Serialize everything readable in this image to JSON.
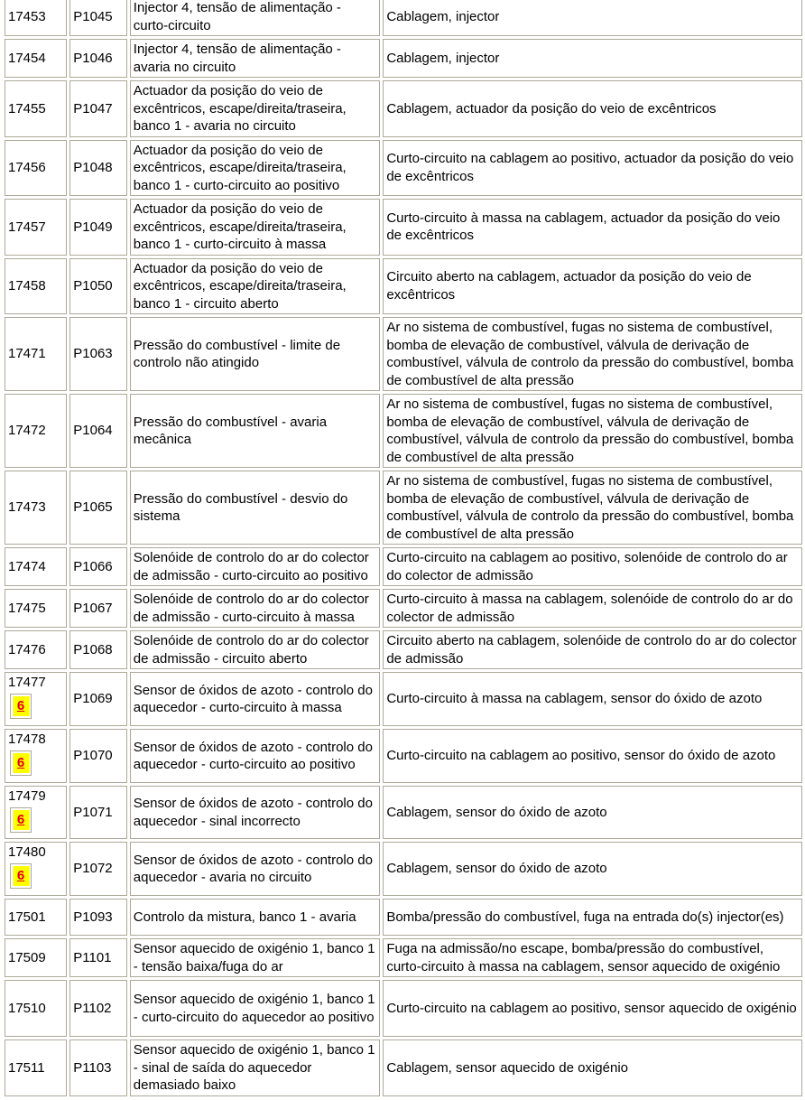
{
  "badge_color": "#ffff00",
  "rows": [
    {
      "code": "17453",
      "pcode": "P1045",
      "fault": "Injector 4, tensão de alimentação - curto-circuito",
      "cause": "Cablagem, injector"
    },
    {
      "code": "17454",
      "pcode": "P1046",
      "fault": "Injector 4, tensão de alimentação - avaria no circuito",
      "cause": "Cablagem, injector"
    },
    {
      "code": "17455",
      "pcode": "P1047",
      "fault": "Actuador da posição do veio de excêntricos, escape/direita/traseira, banco 1 - avaria no circuito",
      "cause": "Cablagem, actuador da posição do veio de excêntricos"
    },
    {
      "code": "17456",
      "pcode": "P1048",
      "fault": "Actuador da posição do veio de excêntricos, escape/direita/traseira, banco 1 - curto-circuito ao positivo",
      "cause": "Curto-circuito na cablagem ao positivo, actuador da posição do veio de excêntricos"
    },
    {
      "code": "17457",
      "pcode": "P1049",
      "fault": "Actuador da posição do veio de excêntricos, escape/direita/traseira, banco 1 - curto-circuito à massa",
      "cause": "Curto-circuito à massa na cablagem, actuador da posição do veio de excêntricos"
    },
    {
      "code": "17458",
      "pcode": "P1050",
      "fault": "Actuador da posição do veio de excêntricos, escape/direita/traseira, banco 1 - circuito aberto",
      "cause": "Circuito aberto na cablagem, actuador da posição do veio de excêntricos"
    },
    {
      "code": "17471",
      "pcode": "P1063",
      "fault": "Pressão do combustível - limite de controlo não atingido",
      "cause": "Ar no sistema de combustível, fugas no sistema de combustível, bomba de elevação de combustível, válvula de derivação de combustível, válvula de controlo da pressão do combustível, bomba de combustível de alta pressão"
    },
    {
      "code": "17472",
      "pcode": "P1064",
      "fault": "Pressão do combustível - avaria mecânica",
      "cause": "Ar no sistema de combustível, fugas no sistema de combustível, bomba de elevação de combustível, válvula de derivação de combustível, válvula de controlo da pressão do combustível, bomba de combustível de alta pressão"
    },
    {
      "code": "17473",
      "pcode": "P1065",
      "fault": "Pressão do combustível - desvio do sistema",
      "cause": "Ar no sistema de combustível, fugas no sistema de combustível, bomba de elevação de combustível, válvula de derivação de combustível, válvula de controlo da pressão do combustível, bomba de combustível de alta pressão"
    },
    {
      "code": "17474",
      "pcode": "P1066",
      "fault": "Solenóide de controlo do ar do colector de admissão - curto-circuito ao positivo",
      "cause": "Curto-circuito na cablagem ao positivo, solenóide de controlo do ar do colector de admissão"
    },
    {
      "code": "17475",
      "pcode": "P1067",
      "fault": "Solenóide de controlo do ar do colector de admissão - curto-circuito à massa",
      "cause": "Curto-circuito à massa na cablagem, solenóide de controlo do ar do colector de admissão"
    },
    {
      "code": "17476",
      "pcode": "P1068",
      "fault": "Solenóide de controlo do ar do colector de admissão - circuito aberto",
      "cause": "Circuito aberto na cablagem, solenóide de controlo do ar do colector de admissão"
    },
    {
      "code": "17477",
      "badge": "6",
      "pcode": "P1069",
      "fault": "Sensor de óxidos de azoto - controlo do aquecedor - curto-circuito à massa",
      "cause": "Curto-circuito à massa na cablagem, sensor do óxido de azoto"
    },
    {
      "code": "17478",
      "badge": "6",
      "pcode": "P1070",
      "fault": "Sensor de óxidos de azoto - controlo do aquecedor - curto-circuito ao positivo",
      "cause": "Curto-circuito na cablagem ao positivo, sensor do óxido de azoto"
    },
    {
      "code": "17479",
      "badge": "6",
      "pcode": "P1071",
      "fault": "Sensor de óxidos de azoto - controlo do aquecedor - sinal incorrecto",
      "cause": "Cablagem, sensor do óxido de azoto"
    },
    {
      "code": "17480",
      "badge": "6",
      "pcode": "P1072",
      "fault": "Sensor de óxidos de azoto - controlo do aquecedor - avaria no circuito",
      "cause": "Cablagem, sensor do óxido de azoto"
    },
    {
      "code": "17501",
      "pcode": "P1093",
      "fault": "Controlo da mistura, banco 1 - avaria",
      "cause": "Bomba/pressão do combustível, fuga na entrada do(s) injector(es)"
    },
    {
      "code": "17509",
      "pcode": "P1101",
      "fault": "Sensor aquecido de oxigénio 1, banco 1 - tensão baixa/fuga do ar",
      "cause": "Fuga na admissão/no escape, bomba/pressão do combustível, curto-circuito à massa na cablagem, sensor aquecido de oxigénio"
    },
    {
      "code": "17510",
      "pcode": "P1102",
      "fault": "Sensor aquecido de oxigénio 1, banco 1 - curto-circuito do aquecedor ao positivo",
      "cause": "Curto-circuito na cablagem ao positivo, sensor aquecido de oxigénio"
    },
    {
      "code": "17511",
      "pcode": "P1103",
      "fault": "Sensor aquecido de oxigénio 1, banco 1 - sinal de saída do aquecedor demasiado baixo",
      "cause": "Cablagem, sensor aquecido de oxigénio"
    }
  ]
}
